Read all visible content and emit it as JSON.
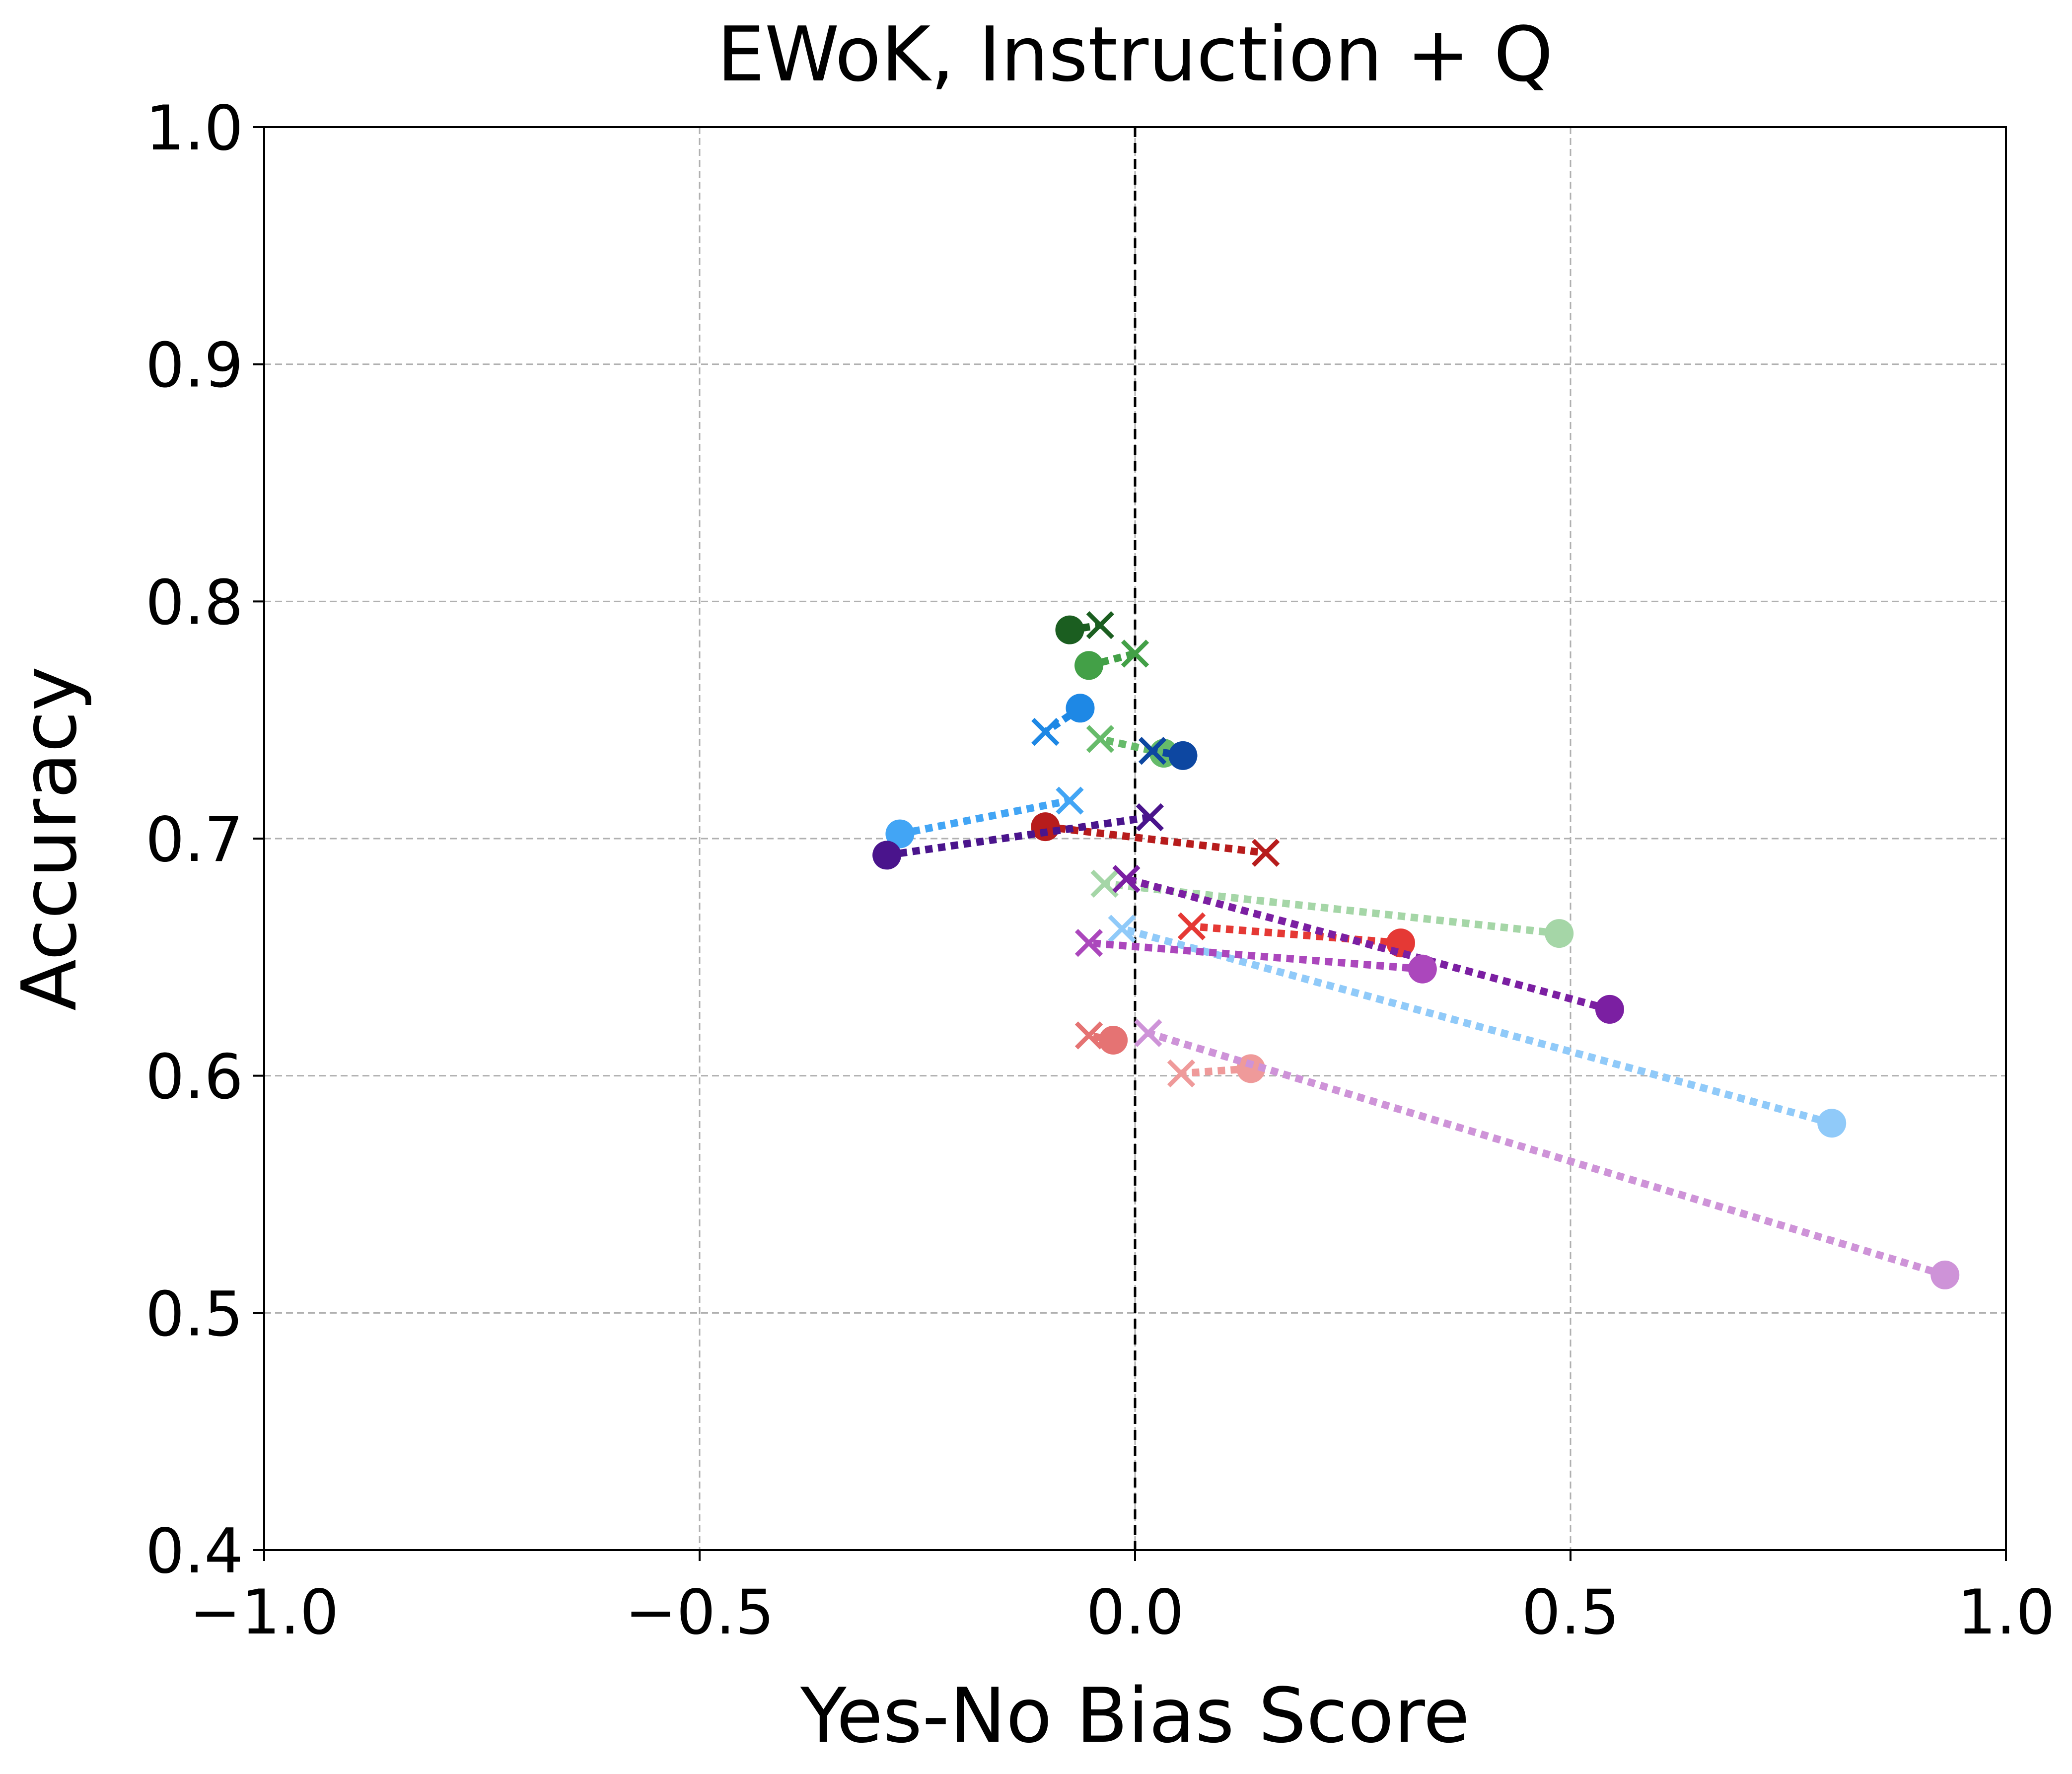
{
  "chart_data": {
    "type": "scatter",
    "title": "EWoK, Instruction + Q",
    "xlabel": "Yes-No Bias Score",
    "ylabel": "Accuracy",
    "xlim": [
      -1.0,
      1.0
    ],
    "ylim": [
      0.4,
      1.0
    ],
    "xticks": [
      -1.0,
      -0.5,
      0.0,
      0.5,
      1.0
    ],
    "xtick_labels": [
      "−1.0",
      "−0.5",
      "0.0",
      "0.5",
      "1.0"
    ],
    "yticks": [
      0.4,
      0.5,
      0.6,
      0.7,
      0.8,
      0.9,
      1.0
    ],
    "ytick_labels": [
      "0.4",
      "0.5",
      "0.6",
      "0.7",
      "0.8",
      "0.9",
      "1.0"
    ],
    "grid": true,
    "reference_line": {
      "x": 0.0,
      "style": "dashed",
      "color": "#000000"
    },
    "marker_legend": {
      "circle": "o",
      "cross": "x"
    },
    "series": [
      {
        "color": "#1b5e20",
        "circle": [
          -0.075,
          0.788
        ],
        "cross": [
          -0.04,
          0.79
        ]
      },
      {
        "color": "#43a047",
        "circle": [
          -0.053,
          0.773
        ],
        "cross": [
          0.0,
          0.778
        ]
      },
      {
        "color": "#66bb6a",
        "circle": [
          0.033,
          0.736
        ],
        "cross": [
          -0.04,
          0.742
        ]
      },
      {
        "color": "#a5d6a7",
        "circle": [
          0.487,
          0.66
        ],
        "cross": [
          -0.035,
          0.681
        ]
      },
      {
        "color": "#0d47a1",
        "circle": [
          0.055,
          0.735
        ],
        "cross": [
          0.02,
          0.737
        ]
      },
      {
        "color": "#1e88e5",
        "circle": [
          -0.063,
          0.755
        ],
        "cross": [
          -0.103,
          0.745
        ]
      },
      {
        "color": "#42a5f5",
        "circle": [
          -0.27,
          0.702
        ],
        "cross": [
          -0.075,
          0.716
        ]
      },
      {
        "color": "#90caf9",
        "circle": [
          0.8,
          0.58
        ],
        "cross": [
          -0.015,
          0.662
        ]
      },
      {
        "color": "#b71c1c",
        "circle": [
          -0.103,
          0.705
        ],
        "cross": [
          0.15,
          0.694
        ]
      },
      {
        "color": "#e53935",
        "circle": [
          0.305,
          0.656
        ],
        "cross": [
          0.065,
          0.663
        ]
      },
      {
        "color": "#e57373",
        "circle": [
          -0.025,
          0.615
        ],
        "cross": [
          -0.053,
          0.617
        ]
      },
      {
        "color": "#ef9a9a",
        "circle": [
          0.133,
          0.603
        ],
        "cross": [
          0.053,
          0.601
        ]
      },
      {
        "color": "#4a148c",
        "circle": [
          -0.285,
          0.693
        ],
        "cross": [
          0.017,
          0.709
        ]
      },
      {
        "color": "#7b1fa2",
        "circle": [
          0.545,
          0.628
        ],
        "cross": [
          -0.01,
          0.683
        ]
      },
      {
        "color": "#ab47bc",
        "circle": [
          0.33,
          0.645
        ],
        "cross": [
          -0.053,
          0.656
        ]
      },
      {
        "color": "#ce93d8",
        "circle": [
          0.93,
          0.516
        ],
        "cross": [
          0.015,
          0.618
        ]
      }
    ]
  }
}
